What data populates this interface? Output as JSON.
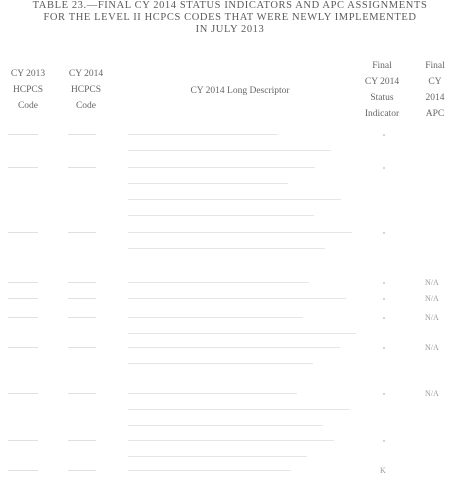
{
  "title": {
    "line1": "TABLE 23.—FINAL CY 2014 STATUS INDICATORS AND APC ASSIGNMENTS",
    "line2": "FOR THE LEVEL II HCPCS CODES THAT WERE NEWLY IMPLEMENTED",
    "line3": "IN JULY 2013"
  },
  "headers": {
    "col1": [
      "CY 2013",
      "HCPCS",
      "Code"
    ],
    "col2": [
      "CY 2014",
      "HCPCS",
      "Code"
    ],
    "col3": [
      "CY 2014 Long Descriptor"
    ],
    "col4": [
      "Final",
      "CY 2014",
      "Status",
      "Indicator"
    ],
    "col5": [
      "Final",
      "CY",
      "2014",
      "APC"
    ]
  },
  "rows": [
    {
      "si": "",
      "apc": "",
      "lines": 2
    },
    {
      "si": "",
      "apc": "",
      "lines": 4
    },
    {
      "si": "",
      "apc": "",
      "lines": 2
    },
    {
      "si": "",
      "apc": "N/A",
      "lines": 1
    },
    {
      "si": "",
      "apc": "N/A",
      "lines": 1
    },
    {
      "si": "",
      "apc": "N/A",
      "lines": 2
    },
    {
      "si": "",
      "apc": "N/A",
      "lines": 2
    },
    {
      "si": "",
      "apc": "N/A",
      "lines": 3
    },
    {
      "si": "",
      "apc": "",
      "lines": 2
    },
    {
      "si": "K",
      "apc": "",
      "lines": 1
    }
  ]
}
